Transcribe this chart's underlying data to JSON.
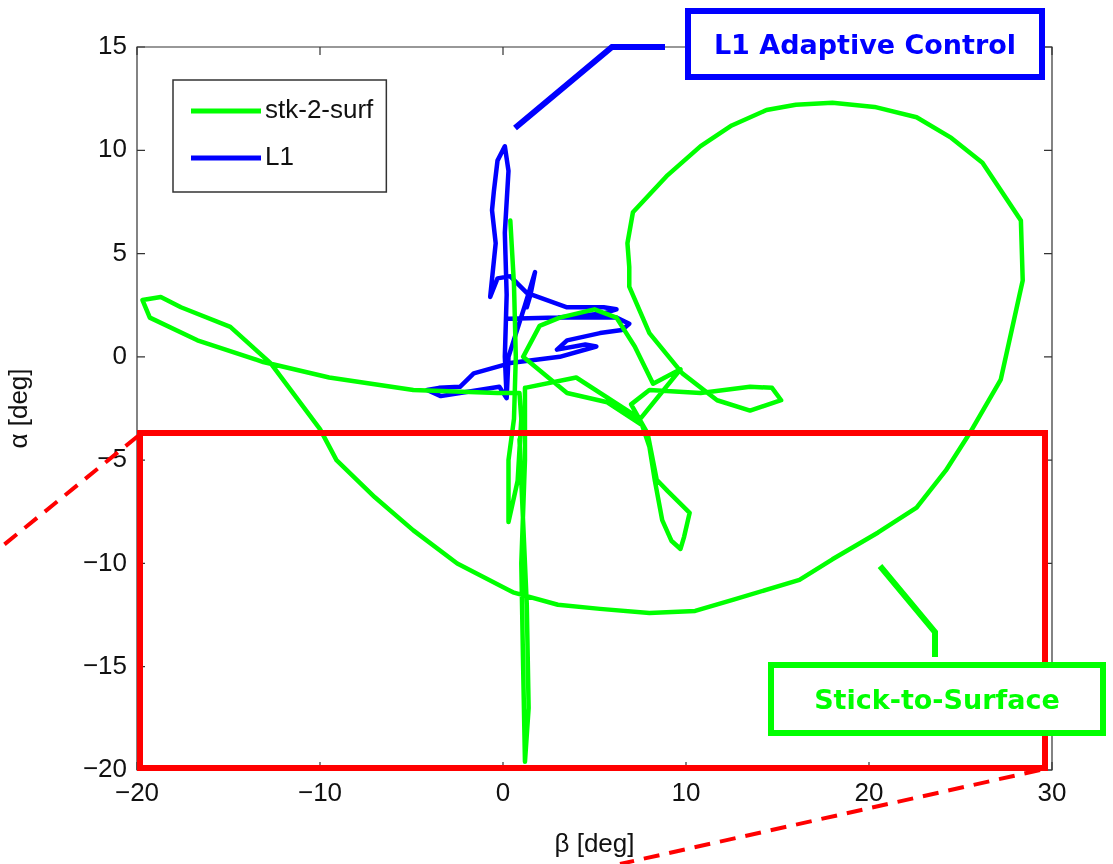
{
  "chart_data": {
    "type": "line",
    "xlabel": "β [deg]",
    "ylabel": "α [deg]",
    "xlim": [
      -20,
      30
    ],
    "ylim": [
      -20,
      15
    ],
    "xticks": [
      -20,
      -10,
      0,
      10,
      20,
      30
    ],
    "yticks": [
      -20,
      -15,
      -10,
      -5,
      0,
      5,
      10,
      15
    ],
    "legend": "top left",
    "annotations": [
      "L1 Adaptive Control",
      "Stick-to-Surface"
    ],
    "series": [
      {
        "name": "stk-2-surf",
        "color": "#00ff00",
        "x": [
          0.4,
          0.6,
          0.7,
          0.6,
          0.3,
          0.3,
          0.8,
          1.0,
          0.9,
          -0.3,
          -4.9,
          -9.5,
          -13.1,
          -16.7,
          -19.3,
          -19.7,
          -18.7,
          -17.6,
          -14.9,
          -12.7,
          -10,
          -9.1,
          -7,
          -4.9,
          -2.5,
          0.55,
          3,
          5.3,
          8,
          10.5,
          12.6,
          16.2,
          18,
          20.5,
          22.6,
          24.2,
          25.5,
          27.2,
          28.4,
          28.3,
          26.2,
          24.5,
          22.6,
          20.3,
          18,
          16,
          14.4,
          12.5,
          10.8,
          9,
          7.1,
          6.8,
          6.9,
          6.9,
          8.0,
          9.8,
          11.7,
          13.5,
          15.2,
          14.7,
          13.5,
          10.8,
          8.0,
          7.0,
          7.9,
          8.4,
          9.0,
          10.2,
          9.9,
          9.7,
          9.2,
          8.7,
          8.3,
          8.0,
          7.6,
          5.7,
          3.5,
          1.1,
          2.0,
          3.1,
          5,
          6.2,
          7.2,
          8.2,
          9.7,
          7.5,
          4,
          1.2,
          1.2,
          1.0,
          1.1,
          1.2,
          1.4,
          1.3,
          1.1,
          0.9
        ],
        "values": [
          6.6,
          3.5,
          0,
          -3,
          -5,
          -8,
          -6,
          -3,
          -1.75,
          -1.75,
          -1.6,
          -1.0,
          -0.25,
          0.8,
          1.9,
          2.75,
          2.9,
          2.4,
          1.45,
          -0.3,
          -3.5,
          -5.0,
          -6.8,
          -8.4,
          -10,
          -11.4,
          -12,
          -12.2,
          -12.4,
          -12.3,
          -11.75,
          -10.8,
          -9.8,
          -8.5,
          -7.3,
          -5.5,
          -3.7,
          -1.1,
          3.7,
          6.6,
          9.4,
          10.6,
          11.6,
          12.1,
          12.3,
          12.2,
          11.95,
          11.2,
          10.2,
          8.8,
          7.0,
          5.5,
          4.35,
          3.4,
          1.15,
          -0.8,
          -2.1,
          -2.6,
          -2.1,
          -1.5,
          -1.45,
          -1.75,
          -1.6,
          -2.3,
          -3.7,
          -5.95,
          -6.5,
          -7.55,
          -8.7,
          -9.3,
          -8.9,
          -7.9,
          -6,
          -4.35,
          -3.3,
          -2.2,
          -1.75,
          0,
          1.5,
          1.9,
          2.3,
          1.9,
          0.5,
          -1.3,
          -0.6,
          -3.0,
          -1.0,
          -1.5,
          -5,
          -10,
          -15,
          -19.6,
          -17,
          -12,
          -8,
          -4
        ]
      },
      {
        "name": "L1",
        "color": "#0000ff",
        "x": [
          0.2,
          0.1,
          0.2,
          0.1,
          0.3,
          0.1,
          -0.3,
          -0.5,
          -0.6,
          -0.4,
          -0.7,
          -0.3,
          0.4,
          1.3,
          3.5,
          5.5,
          6.2,
          5.5,
          3,
          0.3,
          3,
          6.2,
          6.9,
          6.5,
          5.3,
          3.5,
          2.95,
          4.5,
          5.1,
          3.1,
          0.4,
          -1.6,
          -2.35,
          -3.5,
          -4.15,
          -3.4,
          -2,
          -0.2,
          0.2,
          0.3,
          1.2,
          1.75,
          1.5,
          1.3
        ],
        "values": [
          -2.0,
          0,
          3,
          6,
          9,
          10.2,
          9.5,
          8,
          7.1,
          5.5,
          2.9,
          3.8,
          3.9,
          3.1,
          2.4,
          2.4,
          2.3,
          2.1,
          1.9,
          1.85,
          1.9,
          1.9,
          1.6,
          1.3,
          1.15,
          0.8,
          0.35,
          0.6,
          0.5,
          0,
          -0.3,
          -0.8,
          -1.45,
          -1.5,
          -1.6,
          -1.9,
          -1.7,
          -1.45,
          -2.0,
          0,
          2.5,
          4.1,
          3.0,
          2.4
        ]
      }
    ]
  }
}
